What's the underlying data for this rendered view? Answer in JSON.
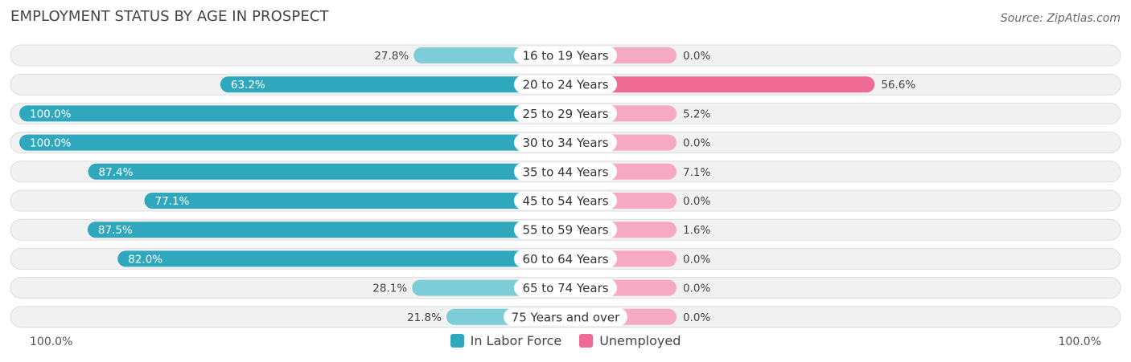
{
  "title": "EMPLOYMENT STATUS BY AGE IN PROSPECT",
  "source": "Source: ZipAtlas.com",
  "colors": {
    "labor": "#2fa8bd",
    "labor_light": "#7ccdd7",
    "unemployed": "#f06a96",
    "unemployed_light": "#f5a9c3",
    "row_bg": "#f1f1f1",
    "row_border": "#dedede"
  },
  "chart_data": {
    "type": "bar",
    "orientation": "horizontal-diverging",
    "title": "EMPLOYMENT STATUS BY AGE IN PROSPECT",
    "categories": [
      "16 to 19 Years",
      "20 to 24 Years",
      "25 to 29 Years",
      "30 to 34 Years",
      "35 to 44 Years",
      "45 to 54 Years",
      "55 to 59 Years",
      "60 to 64 Years",
      "65 to 74 Years",
      "75 Years and over"
    ],
    "series": [
      {
        "name": "In Labor Force",
        "side": "left",
        "values": [
          27.8,
          63.2,
          100.0,
          100.0,
          87.4,
          77.1,
          87.5,
          82.0,
          28.1,
          21.8
        ],
        "labels": [
          "27.8%",
          "63.2%",
          "100.0%",
          "100.0%",
          "87.4%",
          "77.1%",
          "87.5%",
          "82.0%",
          "28.1%",
          "21.8%"
        ]
      },
      {
        "name": "Unemployed",
        "side": "right",
        "values": [
          0.0,
          56.6,
          5.2,
          0.0,
          7.1,
          0.0,
          1.6,
          0.0,
          0.0,
          0.0
        ],
        "labels": [
          "0.0%",
          "56.6%",
          "5.2%",
          "0.0%",
          "7.1%",
          "0.0%",
          "1.6%",
          "0.0%",
          "0.0%",
          "0.0%"
        ]
      }
    ],
    "xlim": [
      0,
      100
    ],
    "axis_left_label": "100.0%",
    "axis_right_label": "100.0%"
  },
  "legend": {
    "labor_label": "In Labor Force",
    "unemployed_label": "Unemployed"
  }
}
